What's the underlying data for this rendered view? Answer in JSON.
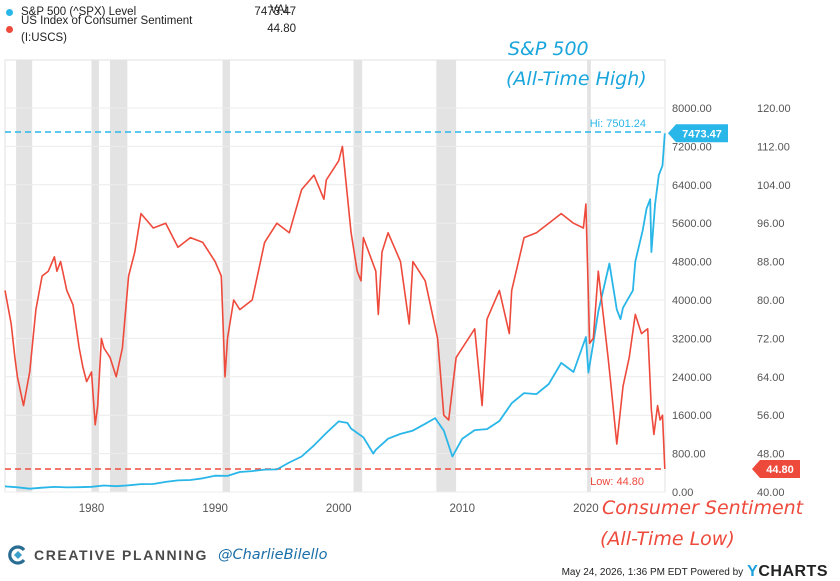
{
  "legend": {
    "header": "VAL",
    "items": [
      {
        "label": "S&P 500 (^SPX) Level",
        "value": "7473.47",
        "color": "#29b6e8"
      },
      {
        "label": "US Index of Consumer Sentiment (I:USCS)",
        "value": "44.80",
        "color": "#ee4a3c"
      }
    ]
  },
  "annotations": {
    "spx_line1": "S&P 500",
    "spx_line2": "(All-Time High)",
    "sent_line1": "Consumer Sentiment",
    "sent_line2": "(All-Time Low)"
  },
  "reference": {
    "spx_high_label": "Hi: 7501.24",
    "sent_low_label": "Low: 44.80",
    "spx_last_tag": "7473.47",
    "sent_last_tag": "44.80"
  },
  "footer": {
    "brand": "CREATIVE PLANNING",
    "handle": "@CharlieBilello",
    "timestamp": "May 24, 2026, 1:36 PM EDT Powered by",
    "logo": "YCHARTS"
  },
  "chart_data": {
    "type": "line",
    "x_range": [
      1973,
      2026.4
    ],
    "x_ticks": [
      "1980",
      "1990",
      "2000",
      "2010",
      "2020"
    ],
    "left_axis": {
      "range": [
        0,
        9000
      ],
      "ticks": [
        "0.00",
        "800.00",
        "1600.00",
        "2400.00",
        "3200.00",
        "4000.00",
        "4800.00",
        "5600.00",
        "6400.00",
        "7200.00",
        "8000.00"
      ]
    },
    "right_axis": {
      "range": [
        40,
        130
      ],
      "ticks": [
        "40.00",
        "48.00",
        "56.00",
        "64.00",
        "72.00",
        "80.00",
        "88.00",
        "96.00",
        "104.00",
        "112.00",
        "120.00"
      ]
    },
    "recessions": [
      [
        1973.9,
        1975.2
      ],
      [
        1980.0,
        1980.6
      ],
      [
        1981.5,
        1982.9
      ],
      [
        1990.6,
        1991.2
      ],
      [
        2001.2,
        2001.9
      ],
      [
        2007.9,
        2009.5
      ],
      [
        2020.1,
        2020.4
      ]
    ],
    "grid": true,
    "series": [
      {
        "name": "S&P 500 (^SPX) Level",
        "axis": "left",
        "color": "#29b6e8",
        "x": [
          1973,
          1974,
          1975,
          1976,
          1977,
          1978,
          1979,
          1980,
          1981,
          1982,
          1983,
          1984,
          1985,
          1986,
          1987,
          1988,
          1989,
          1990,
          1991,
          1992,
          1993,
          1994,
          1995,
          1996,
          1997,
          1998,
          1999,
          2000,
          2000.7,
          2001,
          2002,
          2002.8,
          2003,
          2004,
          2005,
          2006,
          2007,
          2007.8,
          2008.5,
          2009.2,
          2010,
          2011,
          2012,
          2013,
          2014,
          2015,
          2016,
          2017,
          2018,
          2019,
          2020,
          2020.2,
          2020.6,
          2021,
          2021.9,
          2022.5,
          2022.8,
          2023,
          2023.8,
          2024,
          2024.6,
          2024.9,
          2025.2,
          2025.3,
          2025.6,
          2025.9,
          2026.2,
          2026.38
        ],
        "y": [
          116,
          97,
          68,
          90,
          107,
          96,
          99,
          108,
          136,
          120,
          140,
          164,
          167,
          211,
          242,
          250,
          285,
          340,
          335,
          417,
          435,
          466,
          470,
          615,
          740,
          970,
          1230,
          1470,
          1440,
          1320,
          1140,
          800,
          880,
          1110,
          1210,
          1280,
          1420,
          1540,
          1280,
          740,
          1110,
          1290,
          1310,
          1480,
          1850,
          2060,
          2040,
          2250,
          2690,
          2500,
          3230,
          2490,
          3100,
          3760,
          4760,
          3800,
          3600,
          3840,
          4200,
          4800,
          5460,
          5900,
          6100,
          5000,
          6000,
          6600,
          6800,
          7473.47
        ]
      },
      {
        "name": "US Index of Consumer Sentiment (I:USCS)",
        "axis": "right",
        "color": "#ee4a3c",
        "x": [
          1973,
          1973.5,
          1973.8,
          1974,
          1974.5,
          1975,
          1975.5,
          1976,
          1976.5,
          1977,
          1977.2,
          1977.5,
          1978,
          1978.5,
          1979,
          1979.3,
          1979.6,
          1980,
          1980.3,
          1980.5,
          1980.8,
          1981,
          1981.5,
          1982,
          1982.5,
          1983,
          1983.5,
          1984,
          1985,
          1986,
          1987,
          1988,
          1989,
          1990,
          1990.5,
          1990.8,
          1991,
          1991.5,
          1992,
          1993,
          1994,
          1995,
          1996,
          1997,
          1998,
          1998.8,
          1999,
          2000,
          2000.3,
          2001,
          2001.5,
          2001.8,
          2002,
          2003,
          2003.2,
          2003.5,
          2004,
          2005,
          2005.7,
          2006,
          2007,
          2008,
          2008.5,
          2008.9,
          2009.5,
          2010,
          2011,
          2011.6,
          2012,
          2013,
          2013.8,
          2014,
          2015,
          2016,
          2017,
          2018,
          2019,
          2019.8,
          2020,
          2020.3,
          2020.6,
          2021,
          2021.8,
          2022,
          2022.5,
          2023,
          2023.5,
          2024,
          2024.5,
          2025,
          2025.3,
          2025.5,
          2025.8,
          2026,
          2026.2,
          2026.38
        ],
        "y": [
          82,
          75,
          68,
          64,
          58,
          65,
          78,
          85,
          86,
          89,
          86,
          88,
          82,
          79,
          70,
          66,
          63,
          65,
          54,
          58,
          72,
          70,
          68,
          64,
          70,
          85,
          90,
          98,
          95,
          96,
          91,
          93,
          92,
          88,
          85,
          64,
          72,
          80,
          78,
          80,
          92,
          96,
          94,
          103,
          106,
          101,
          105,
          109,
          112,
          94,
          86,
          84,
          93,
          86,
          77,
          90,
          94,
          88,
          75,
          88,
          84,
          72,
          56,
          55,
          68,
          70,
          74,
          58,
          76,
          82,
          73,
          82,
          93,
          94,
          96,
          98,
          96,
          95,
          100,
          71,
          72,
          86,
          68,
          63,
          50,
          62,
          68,
          77,
          73,
          74,
          57,
          52,
          58,
          55,
          56,
          44.8
        ]
      }
    ]
  }
}
